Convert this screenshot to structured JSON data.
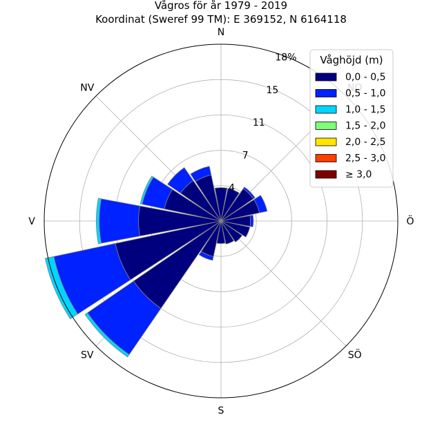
{
  "chart_data": {
    "type": "polar-bar",
    "title": "Vågros för år 1979 - 2019",
    "subtitle": "Koordinat (Sweref 99 TM): E 369152, N 6164118",
    "direction_labels": [
      {
        "text": "N",
        "deg": 0
      },
      {
        "text": "NO",
        "deg": 45
      },
      {
        "text": "Ö",
        "deg": 90
      },
      {
        "text": "SÖ",
        "deg": 135
      },
      {
        "text": "S",
        "deg": 180
      },
      {
        "text": "SV",
        "deg": 225
      },
      {
        "text": "V",
        "deg": 270
      },
      {
        "text": "NV",
        "deg": 315
      }
    ],
    "radial_ticks": [
      "4",
      "7",
      "11",
      "15",
      "18%"
    ],
    "radial_tick_values": [
      3.6,
      7.2,
      10.8,
      14.4,
      18
    ],
    "rmax": 18,
    "grid": true,
    "legend": {
      "title": "Våghöjd (m)",
      "placement": "top-right",
      "entries": [
        "0,0 - 0,5",
        "0,5 - 1,0",
        "1,0 - 1,5",
        "1,5 - 2,0",
        "2,0 - 2,5",
        "2,5 - 3,0",
        "≥ 3,0"
      ]
    },
    "bin_colors": [
      "#00007f",
      "#0022ff",
      "#00d5ff",
      "#7dff7a",
      "#ffe600",
      "#ff3f00",
      "#7f0000"
    ],
    "sectors": [
      {
        "deg": 0,
        "stack": [
          3.4
        ]
      },
      {
        "deg": 22.5,
        "stack": [
          3.4
        ]
      },
      {
        "deg": 45,
        "stack": [
          4.0,
          0.2
        ]
      },
      {
        "deg": 67.5,
        "stack": [
          4.0,
          0.8
        ]
      },
      {
        "deg": 90,
        "stack": [
          3.0,
          0.3
        ]
      },
      {
        "deg": 112.5,
        "stack": [
          3.0
        ]
      },
      {
        "deg": 135,
        "stack": [
          2.6
        ]
      },
      {
        "deg": 157.5,
        "stack": [
          2.4
        ]
      },
      {
        "deg": 180,
        "stack": [
          2.3
        ]
      },
      {
        "deg": 202.5,
        "stack": [
          3.7,
          0.4
        ]
      },
      {
        "deg": 225,
        "stack": [
          10.8,
          5.7,
          0.3
        ]
      },
      {
        "deg": 247.5,
        "stack": [
          11.0,
          6.4,
          0.9
        ]
      },
      {
        "deg": 270,
        "stack": [
          8.4,
          4.0,
          0.3
        ]
      },
      {
        "deg": 292.5,
        "stack": [
          5.9,
          2.3,
          0.2
        ]
      },
      {
        "deg": 315,
        "stack": [
          5.0,
          1.6
        ]
      },
      {
        "deg": 337.5,
        "stack": [
          4.8,
          0.9
        ]
      }
    ]
  }
}
